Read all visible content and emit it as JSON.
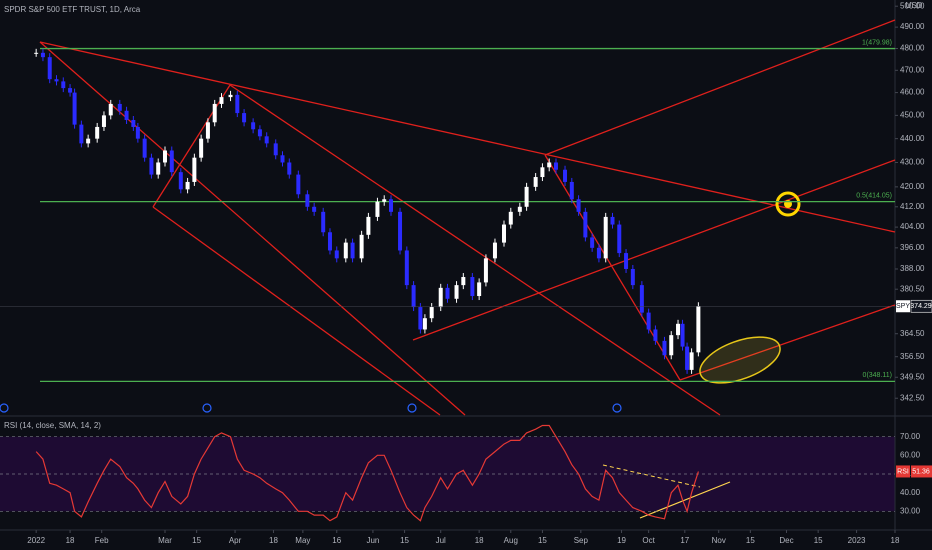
{
  "chart_data": [
    {
      "type": "candlestick",
      "title": "SPDR S&P 500 ETF TRUST, 1D, Arca",
      "axis_unit": "USD",
      "log_scale": true,
      "up_color": "#ffffff",
      "down_color": "#2b2bff",
      "xlim": [
        -16,
        380
      ],
      "xticks": [
        {
          "value": 0,
          "label": "2022"
        },
        {
          "value": 15,
          "label": "18"
        },
        {
          "value": 29,
          "label": "Feb"
        },
        {
          "value": 57,
          "label": "Mar"
        },
        {
          "value": 71,
          "label": "15"
        },
        {
          "value": 88,
          "label": "Apr"
        },
        {
          "value": 105,
          "label": "18"
        },
        {
          "value": 118,
          "label": "May"
        },
        {
          "value": 133,
          "label": "16"
        },
        {
          "value": 149,
          "label": "Jun"
        },
        {
          "value": 163,
          "label": "15"
        },
        {
          "value": 179,
          "label": "Jul"
        },
        {
          "value": 196,
          "label": "18"
        },
        {
          "value": 210,
          "label": "Aug"
        },
        {
          "value": 224,
          "label": "15"
        },
        {
          "value": 241,
          "label": "Sep"
        },
        {
          "value": 259,
          "label": "19"
        },
        {
          "value": 271,
          "label": "Oct"
        },
        {
          "value": 287,
          "label": "17"
        },
        {
          "value": 302,
          "label": "Nov"
        },
        {
          "value": 316,
          "label": "15"
        },
        {
          "value": 332,
          "label": "Dec"
        },
        {
          "value": 346,
          "label": "15"
        },
        {
          "value": 363,
          "label": "2023"
        },
        {
          "value": 380,
          "label": "18"
        }
      ],
      "ylim": [
        337,
        503
      ],
      "yticks": [
        {
          "value": 500,
          "label": "500.00"
        },
        {
          "value": 490,
          "label": "490.00"
        },
        {
          "value": 480,
          "label": "480.00"
        },
        {
          "value": 470,
          "label": "470.00"
        },
        {
          "value": 460,
          "label": "460.00"
        },
        {
          "value": 450,
          "label": "450.00"
        },
        {
          "value": 440,
          "label": "440.00"
        },
        {
          "value": 430,
          "label": "430.00"
        },
        {
          "value": 420,
          "label": "420.00"
        },
        {
          "value": 412,
          "label": "412.00"
        },
        {
          "value": 404,
          "label": "404.00"
        },
        {
          "value": 396,
          "label": "396.00"
        },
        {
          "value": 388,
          "label": "388.00"
        },
        {
          "value": 380.5,
          "label": "380.50"
        },
        {
          "value": 364.5,
          "label": "364.50"
        },
        {
          "value": 356.5,
          "label": "356.50"
        },
        {
          "value": 349.5,
          "label": "349.50"
        },
        {
          "value": 342.5,
          "label": "342.50"
        }
      ],
      "levels_color": "#4caf50",
      "levels": [
        {
          "value": 479.98,
          "label": "1(479.98)"
        },
        {
          "value": 414.05,
          "label": "0.5(414.05)"
        },
        {
          "value": 348.11,
          "label": "0(348.11)"
        }
      ],
      "x": [
        0,
        3,
        6,
        9,
        12,
        15,
        17,
        20,
        23,
        27,
        30,
        33,
        37,
        40,
        43,
        45,
        48,
        51,
        54,
        57,
        60,
        64,
        67,
        70,
        73,
        76,
        79,
        82,
        86,
        89,
        92,
        96,
        99,
        102,
        106,
        109,
        112,
        116,
        120,
        123,
        127,
        130,
        133,
        137,
        140,
        144,
        147,
        151,
        154,
        157,
        161,
        164,
        167,
        170,
        172,
        175,
        179,
        182,
        186,
        189,
        193,
        196,
        199,
        203,
        207,
        210,
        214,
        217,
        221,
        224,
        227,
        230,
        234,
        237,
        240,
        243,
        246,
        249,
        252,
        255,
        258,
        261,
        264,
        268,
        271,
        274,
        278,
        281,
        284,
        286,
        288,
        290,
        293
      ],
      "series": [
        {
          "name": "SPY",
          "values": [
            478,
            476,
            466,
            465,
            462,
            460,
            446,
            438,
            440,
            445,
            450,
            455,
            452,
            448,
            445,
            440,
            432,
            425,
            430,
            435,
            426,
            419,
            422,
            432,
            440,
            447,
            455,
            458,
            459,
            451,
            447,
            444,
            441,
            438,
            433,
            430,
            425,
            417,
            412,
            410,
            402,
            395,
            392,
            398,
            392,
            401,
            408,
            414,
            415,
            410,
            395,
            382,
            374,
            366,
            370,
            374,
            381,
            377,
            382,
            385,
            378,
            383,
            392,
            398,
            405,
            410,
            412,
            420,
            424,
            428,
            430,
            427,
            422,
            415,
            410,
            400,
            396,
            392,
            408,
            405,
            394,
            388,
            382,
            372,
            366,
            362,
            357,
            364,
            368,
            360,
            352,
            358,
            374.29
          ]
        }
      ]
    },
    {
      "type": "line",
      "title": "RSI (14, close, SMA, 14, 2)",
      "band_color": "#1e0b33",
      "ylim": [
        20,
        80
      ],
      "yticks": [
        {
          "value": 70,
          "label": "70.00"
        },
        {
          "value": 60,
          "label": "60.00"
        },
        {
          "value": 50,
          "label": "50.00"
        },
        {
          "value": 40,
          "label": "40.00"
        },
        {
          "value": 30,
          "label": "30.00"
        }
      ],
      "series": [
        {
          "name": "RSI",
          "color": "#e53935",
          "values": [
            62,
            58,
            45,
            44,
            42,
            40,
            30,
            27,
            35,
            45,
            52,
            58,
            54,
            48,
            45,
            42,
            36,
            32,
            40,
            46,
            38,
            34,
            38,
            50,
            58,
            64,
            70,
            72,
            70,
            58,
            52,
            50,
            48,
            45,
            42,
            40,
            36,
            30,
            30,
            28,
            28,
            25,
            27,
            40,
            36,
            48,
            56,
            60,
            60,
            52,
            40,
            32,
            28,
            25,
            32,
            38,
            48,
            42,
            50,
            52,
            44,
            50,
            58,
            62,
            66,
            68,
            68,
            72,
            74,
            76,
            76,
            70,
            62,
            55,
            50,
            42,
            38,
            36,
            52,
            48,
            40,
            36,
            32,
            30,
            28,
            27,
            26,
            40,
            44,
            36,
            30,
            40,
            51.36
          ]
        }
      ]
    }
  ]
}
